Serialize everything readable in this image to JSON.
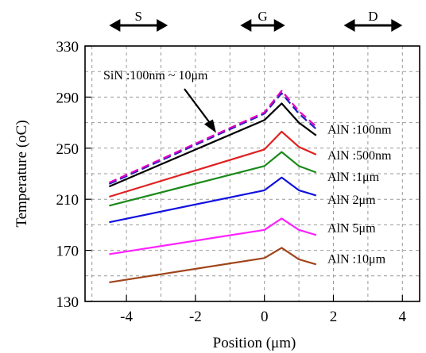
{
  "chart_data": {
    "type": "line",
    "xlabel": "Position (μm)",
    "ylabel": "Temperature (oC)",
    "xlim": [
      -5.2,
      4.5
    ],
    "ylim": [
      130,
      330
    ],
    "xticks": [
      -4,
      -2,
      0,
      2,
      4
    ],
    "yticks": [
      130,
      170,
      210,
      250,
      290,
      330
    ],
    "grid": true,
    "regions": [
      {
        "label": "S",
        "x_from": -4.5,
        "x_to": -2.8
      },
      {
        "label": "G",
        "x_from": -0.7,
        "x_to": 0.6
      },
      {
        "label": "D",
        "x_from": 2.3,
        "x_to": 4.0
      }
    ],
    "annotation": {
      "text": "SiN :100nm ~ 10μm",
      "arrow_to": [
        -1.4,
        262
      ]
    },
    "series": [
      {
        "name": "SiN :100nm ~ 10μm (magenta)",
        "color": "#e000c0",
        "dash": true,
        "x": [
          -4.5,
          0.0,
          0.5,
          1.0,
          1.5
        ],
        "y": [
          223,
          278,
          295,
          279,
          267
        ]
      },
      {
        "name": "SiN :100nm ~ 10μm (blue)",
        "color": "#2020c0",
        "dash": true,
        "x": [
          -4.5,
          0.0,
          0.5,
          1.0,
          1.5
        ],
        "y": [
          222,
          277,
          293,
          277,
          265
        ]
      },
      {
        "name": "AlN :100nm",
        "color": "#000000",
        "dash": false,
        "x": [
          -4.5,
          0.0,
          0.5,
          1.0,
          1.5
        ],
        "y": [
          220,
          272,
          285,
          270,
          260
        ]
      },
      {
        "name": "AlN :500nm",
        "color": "#e02020",
        "dash": false,
        "x": [
          -4.5,
          0.0,
          0.5,
          1.0,
          1.5
        ],
        "y": [
          212,
          249,
          263,
          251,
          245
        ]
      },
      {
        "name": "AlN :1μm",
        "color": "#1a8a1a",
        "dash": false,
        "x": [
          -4.5,
          0.0,
          0.5,
          1.0,
          1.5
        ],
        "y": [
          205,
          236,
          247,
          236,
          231
        ]
      },
      {
        "name": "AlN 2μm",
        "color": "#1010e0",
        "dash": false,
        "x": [
          -4.5,
          0.0,
          0.5,
          1.0,
          1.5
        ],
        "y": [
          192,
          217,
          227,
          217,
          213
        ]
      },
      {
        "name": "AlN 5μm",
        "color": "#ff20ff",
        "dash": false,
        "x": [
          -4.5,
          0.0,
          0.5,
          1.0,
          1.5
        ],
        "y": [
          167,
          186,
          195,
          186,
          182
        ]
      },
      {
        "name": "AlN :10μm",
        "color": "#a0441a",
        "dash": false,
        "x": [
          -4.5,
          0.0,
          0.5,
          1.0,
          1.5
        ],
        "y": [
          145,
          164,
          172,
          163,
          159
        ]
      }
    ],
    "series_labels": [
      "AlN :100nm",
      "AlN :500nm",
      "AlN :1μm",
      "AlN 2μm",
      "AlN 5μm",
      "AlN :10μm"
    ],
    "series_label_values": [
      265,
      245,
      228,
      210,
      188,
      164
    ]
  }
}
